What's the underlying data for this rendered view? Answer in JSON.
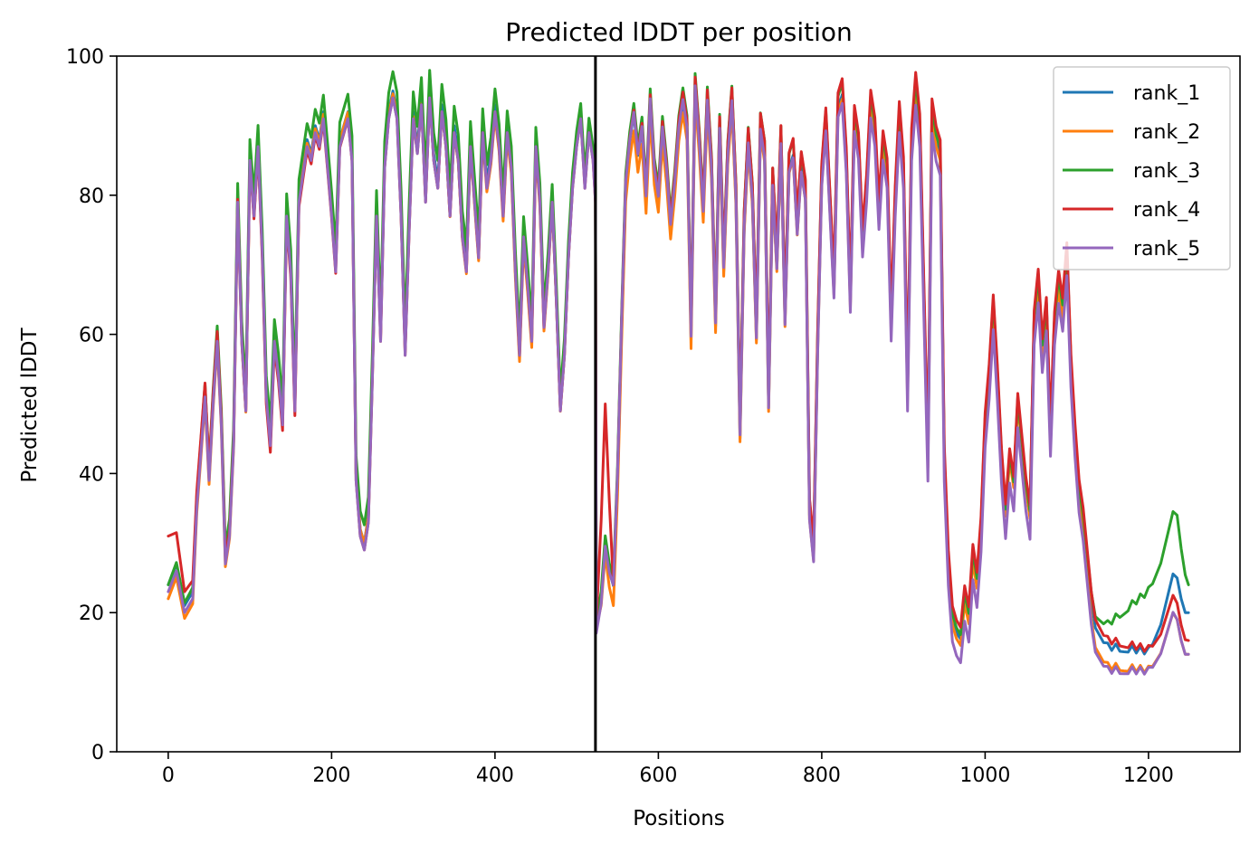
{
  "chart_data": {
    "type": "line",
    "title": "Predicted lDDT per position",
    "xlabel": "Positions",
    "ylabel": "Predicted lDDT",
    "xlim": [
      -63,
      1312
    ],
    "ylim": [
      0,
      100
    ],
    "x_ticks": [
      0,
      200,
      400,
      600,
      800,
      1000,
      1200
    ],
    "y_ticks": [
      0,
      20,
      40,
      60,
      80,
      100
    ],
    "vertical_line_x": 523,
    "grid": false,
    "legend_position": "top-right",
    "series": [
      {
        "name": "rank_1",
        "color": "#1f77b4"
      },
      {
        "name": "rank_2",
        "color": "#ff7f0e"
      },
      {
        "name": "rank_3",
        "color": "#2ca02c"
      },
      {
        "name": "rank_4",
        "color": "#d62728"
      },
      {
        "name": "rank_5",
        "color": "#9467bd"
      }
    ],
    "profile": [
      [
        0,
        24
      ],
      [
        10,
        27
      ],
      [
        20,
        21
      ],
      [
        30,
        23
      ],
      [
        35,
        36
      ],
      [
        40,
        44
      ],
      [
        45,
        52
      ],
      [
        50,
        40
      ],
      [
        55,
        51
      ],
      [
        60,
        60
      ],
      [
        65,
        48
      ],
      [
        70,
        28
      ],
      [
        75,
        32
      ],
      [
        80,
        45
      ],
      [
        85,
        80
      ],
      [
        90,
        60
      ],
      [
        95,
        50
      ],
      [
        100,
        86
      ],
      [
        105,
        78
      ],
      [
        110,
        88
      ],
      [
        115,
        73
      ],
      [
        120,
        52
      ],
      [
        125,
        45
      ],
      [
        130,
        60
      ],
      [
        135,
        55
      ],
      [
        140,
        48
      ],
      [
        145,
        78
      ],
      [
        150,
        70
      ],
      [
        155,
        50
      ],
      [
        160,
        80
      ],
      [
        165,
        84
      ],
      [
        170,
        88
      ],
      [
        175,
        86
      ],
      [
        180,
        90
      ],
      [
        185,
        88
      ],
      [
        190,
        92
      ],
      [
        195,
        85
      ],
      [
        200,
        78
      ],
      [
        205,
        70
      ],
      [
        210,
        88
      ],
      [
        215,
        90
      ],
      [
        220,
        92
      ],
      [
        225,
        86
      ],
      [
        230,
        40
      ],
      [
        235,
        32
      ],
      [
        240,
        30
      ],
      [
        245,
        34
      ],
      [
        250,
        55
      ],
      [
        255,
        78
      ],
      [
        260,
        60
      ],
      [
        265,
        85
      ],
      [
        270,
        92
      ],
      [
        275,
        95
      ],
      [
        280,
        92
      ],
      [
        285,
        78
      ],
      [
        290,
        58
      ],
      [
        295,
        76
      ],
      [
        300,
        92
      ],
      [
        305,
        87
      ],
      [
        310,
        94
      ],
      [
        315,
        80
      ],
      [
        320,
        95
      ],
      [
        325,
        86
      ],
      [
        330,
        82
      ],
      [
        335,
        93
      ],
      [
        340,
        88
      ],
      [
        345,
        78
      ],
      [
        350,
        90
      ],
      [
        355,
        86
      ],
      [
        360,
        75
      ],
      [
        365,
        70
      ],
      [
        370,
        88
      ],
      [
        375,
        80
      ],
      [
        380,
        72
      ],
      [
        385,
        90
      ],
      [
        390,
        82
      ],
      [
        395,
        86
      ],
      [
        400,
        93
      ],
      [
        405,
        88
      ],
      [
        410,
        78
      ],
      [
        415,
        90
      ],
      [
        420,
        85
      ],
      [
        425,
        70
      ],
      [
        430,
        58
      ],
      [
        435,
        75
      ],
      [
        440,
        68
      ],
      [
        445,
        60
      ],
      [
        450,
        88
      ],
      [
        455,
        80
      ],
      [
        460,
        62
      ],
      [
        465,
        70
      ],
      [
        470,
        80
      ],
      [
        475,
        66
      ],
      [
        480,
        50
      ],
      [
        485,
        58
      ],
      [
        490,
        72
      ],
      [
        495,
        82
      ],
      [
        500,
        88
      ],
      [
        505,
        92
      ],
      [
        510,
        82
      ],
      [
        515,
        90
      ],
      [
        520,
        86
      ],
      [
        523,
        80
      ],
      [
        524,
        18
      ],
      [
        530,
        22
      ],
      [
        535,
        30
      ],
      [
        540,
        26
      ],
      [
        545,
        24
      ],
      [
        550,
        40
      ],
      [
        555,
        62
      ],
      [
        560,
        82
      ],
      [
        565,
        88
      ],
      [
        570,
        92
      ],
      [
        575,
        86
      ],
      [
        580,
        90
      ],
      [
        585,
        80
      ],
      [
        590,
        94
      ],
      [
        595,
        84
      ],
      [
        600,
        80
      ],
      [
        605,
        90
      ],
      [
        610,
        84
      ],
      [
        615,
        76
      ],
      [
        620,
        82
      ],
      [
        625,
        90
      ],
      [
        630,
        94
      ],
      [
        635,
        90
      ],
      [
        640,
        60
      ],
      [
        645,
        96
      ],
      [
        650,
        88
      ],
      [
        655,
        78
      ],
      [
        660,
        94
      ],
      [
        665,
        84
      ],
      [
        670,
        62
      ],
      [
        675,
        90
      ],
      [
        680,
        70
      ],
      [
        685,
        86
      ],
      [
        690,
        94
      ],
      [
        695,
        80
      ],
      [
        700,
        46
      ],
      [
        705,
        76
      ],
      [
        710,
        88
      ],
      [
        715,
        80
      ],
      [
        720,
        60
      ],
      [
        725,
        90
      ],
      [
        730,
        86
      ],
      [
        735,
        50
      ],
      [
        740,
        82
      ],
      [
        745,
        70
      ],
      [
        750,
        88
      ],
      [
        755,
        62
      ],
      [
        760,
        84
      ],
      [
        765,
        86
      ],
      [
        770,
        75
      ],
      [
        775,
        84
      ],
      [
        780,
        80
      ],
      [
        785,
        34
      ],
      [
        790,
        28
      ],
      [
        795,
        58
      ],
      [
        800,
        82
      ],
      [
        805,
        90
      ],
      [
        810,
        78
      ],
      [
        815,
        66
      ],
      [
        820,
        92
      ],
      [
        825,
        94
      ],
      [
        830,
        84
      ],
      [
        835,
        64
      ],
      [
        840,
        90
      ],
      [
        845,
        86
      ],
      [
        850,
        72
      ],
      [
        855,
        80
      ],
      [
        860,
        92
      ],
      [
        865,
        88
      ],
      [
        870,
        76
      ],
      [
        875,
        86
      ],
      [
        880,
        82
      ],
      [
        885,
        60
      ],
      [
        890,
        78
      ],
      [
        895,
        90
      ],
      [
        900,
        82
      ],
      [
        905,
        50
      ],
      [
        910,
        86
      ],
      [
        915,
        94
      ],
      [
        920,
        88
      ],
      [
        925,
        64
      ],
      [
        930,
        40
      ],
      [
        935,
        90
      ],
      [
        940,
        86
      ],
      [
        945,
        84
      ],
      [
        950,
        40
      ],
      [
        955,
        25
      ],
      [
        960,
        17
      ],
      [
        965,
        15
      ],
      [
        970,
        14
      ],
      [
        975,
        20
      ],
      [
        980,
        17
      ],
      [
        985,
        26
      ],
      [
        990,
        22
      ],
      [
        995,
        30
      ],
      [
        1000,
        45
      ],
      [
        1005,
        52
      ],
      [
        1010,
        62
      ],
      [
        1015,
        52
      ],
      [
        1020,
        40
      ],
      [
        1025,
        32
      ],
      [
        1030,
        40
      ],
      [
        1035,
        36
      ],
      [
        1040,
        48
      ],
      [
        1045,
        42
      ],
      [
        1050,
        36
      ],
      [
        1055,
        32
      ],
      [
        1060,
        60
      ],
      [
        1065,
        66
      ],
      [
        1070,
        56
      ],
      [
        1075,
        62
      ],
      [
        1080,
        44
      ],
      [
        1085,
        60
      ],
      [
        1090,
        66
      ],
      [
        1095,
        62
      ],
      [
        1100,
        70
      ],
      [
        1105,
        54
      ],
      [
        1110,
        44
      ],
      [
        1115,
        36
      ],
      [
        1120,
        32
      ],
      [
        1125,
        26
      ],
      [
        1130,
        20
      ],
      [
        1135,
        16
      ],
      [
        1140,
        15
      ],
      [
        1145,
        14
      ],
      [
        1150,
        14
      ],
      [
        1155,
        13
      ],
      [
        1160,
        14
      ],
      [
        1165,
        13
      ],
      [
        1170,
        13
      ],
      [
        1175,
        13
      ],
      [
        1180,
        14
      ],
      [
        1185,
        13
      ],
      [
        1190,
        14
      ],
      [
        1195,
        13
      ],
      [
        1200,
        14
      ],
      [
        1205,
        14
      ],
      [
        1210,
        15
      ],
      [
        1215,
        16
      ],
      [
        1220,
        18
      ],
      [
        1225,
        20
      ],
      [
        1230,
        22
      ],
      [
        1235,
        21
      ],
      [
        1240,
        18
      ],
      [
        1245,
        16
      ],
      [
        1249,
        16
      ]
    ],
    "series_deltas": {
      "rank_1": [
        [
          0,
          0
        ],
        [
          230,
          0
        ],
        [
          523,
          0
        ],
        [
          700,
          -1
        ],
        [
          1040,
          3
        ],
        [
          1200,
          1
        ],
        [
          1235,
          4
        ],
        [
          1249,
          4
        ]
      ],
      "rank_2": [
        [
          0,
          -2
        ],
        [
          230,
          0
        ],
        [
          440,
          -2
        ],
        [
          523,
          0
        ],
        [
          545,
          -3
        ],
        [
          1040,
          2
        ],
        [
          1135,
          -1
        ],
        [
          1230,
          -2
        ],
        [
          1249,
          -2
        ]
      ],
      "rank_3": [
        [
          0,
          0
        ],
        [
          100,
          2
        ],
        [
          330,
          3
        ],
        [
          523,
          1
        ],
        [
          1010,
          3
        ],
        [
          1120,
          2
        ],
        [
          1235,
          13
        ],
        [
          1249,
          8
        ]
      ],
      "rank_4": [
        [
          0,
          7
        ],
        [
          20,
          2
        ],
        [
          120,
          -2
        ],
        [
          230,
          -1
        ],
        [
          523,
          -1
        ],
        [
          535,
          20
        ],
        [
          545,
          0
        ],
        [
          950,
          4
        ],
        [
          1135,
          3
        ],
        [
          1249,
          0
        ]
      ],
      "rank_5": [
        [
          0,
          -1
        ],
        [
          523,
          -1
        ],
        [
          545,
          0
        ],
        [
          1249,
          -2
        ]
      ]
    }
  }
}
